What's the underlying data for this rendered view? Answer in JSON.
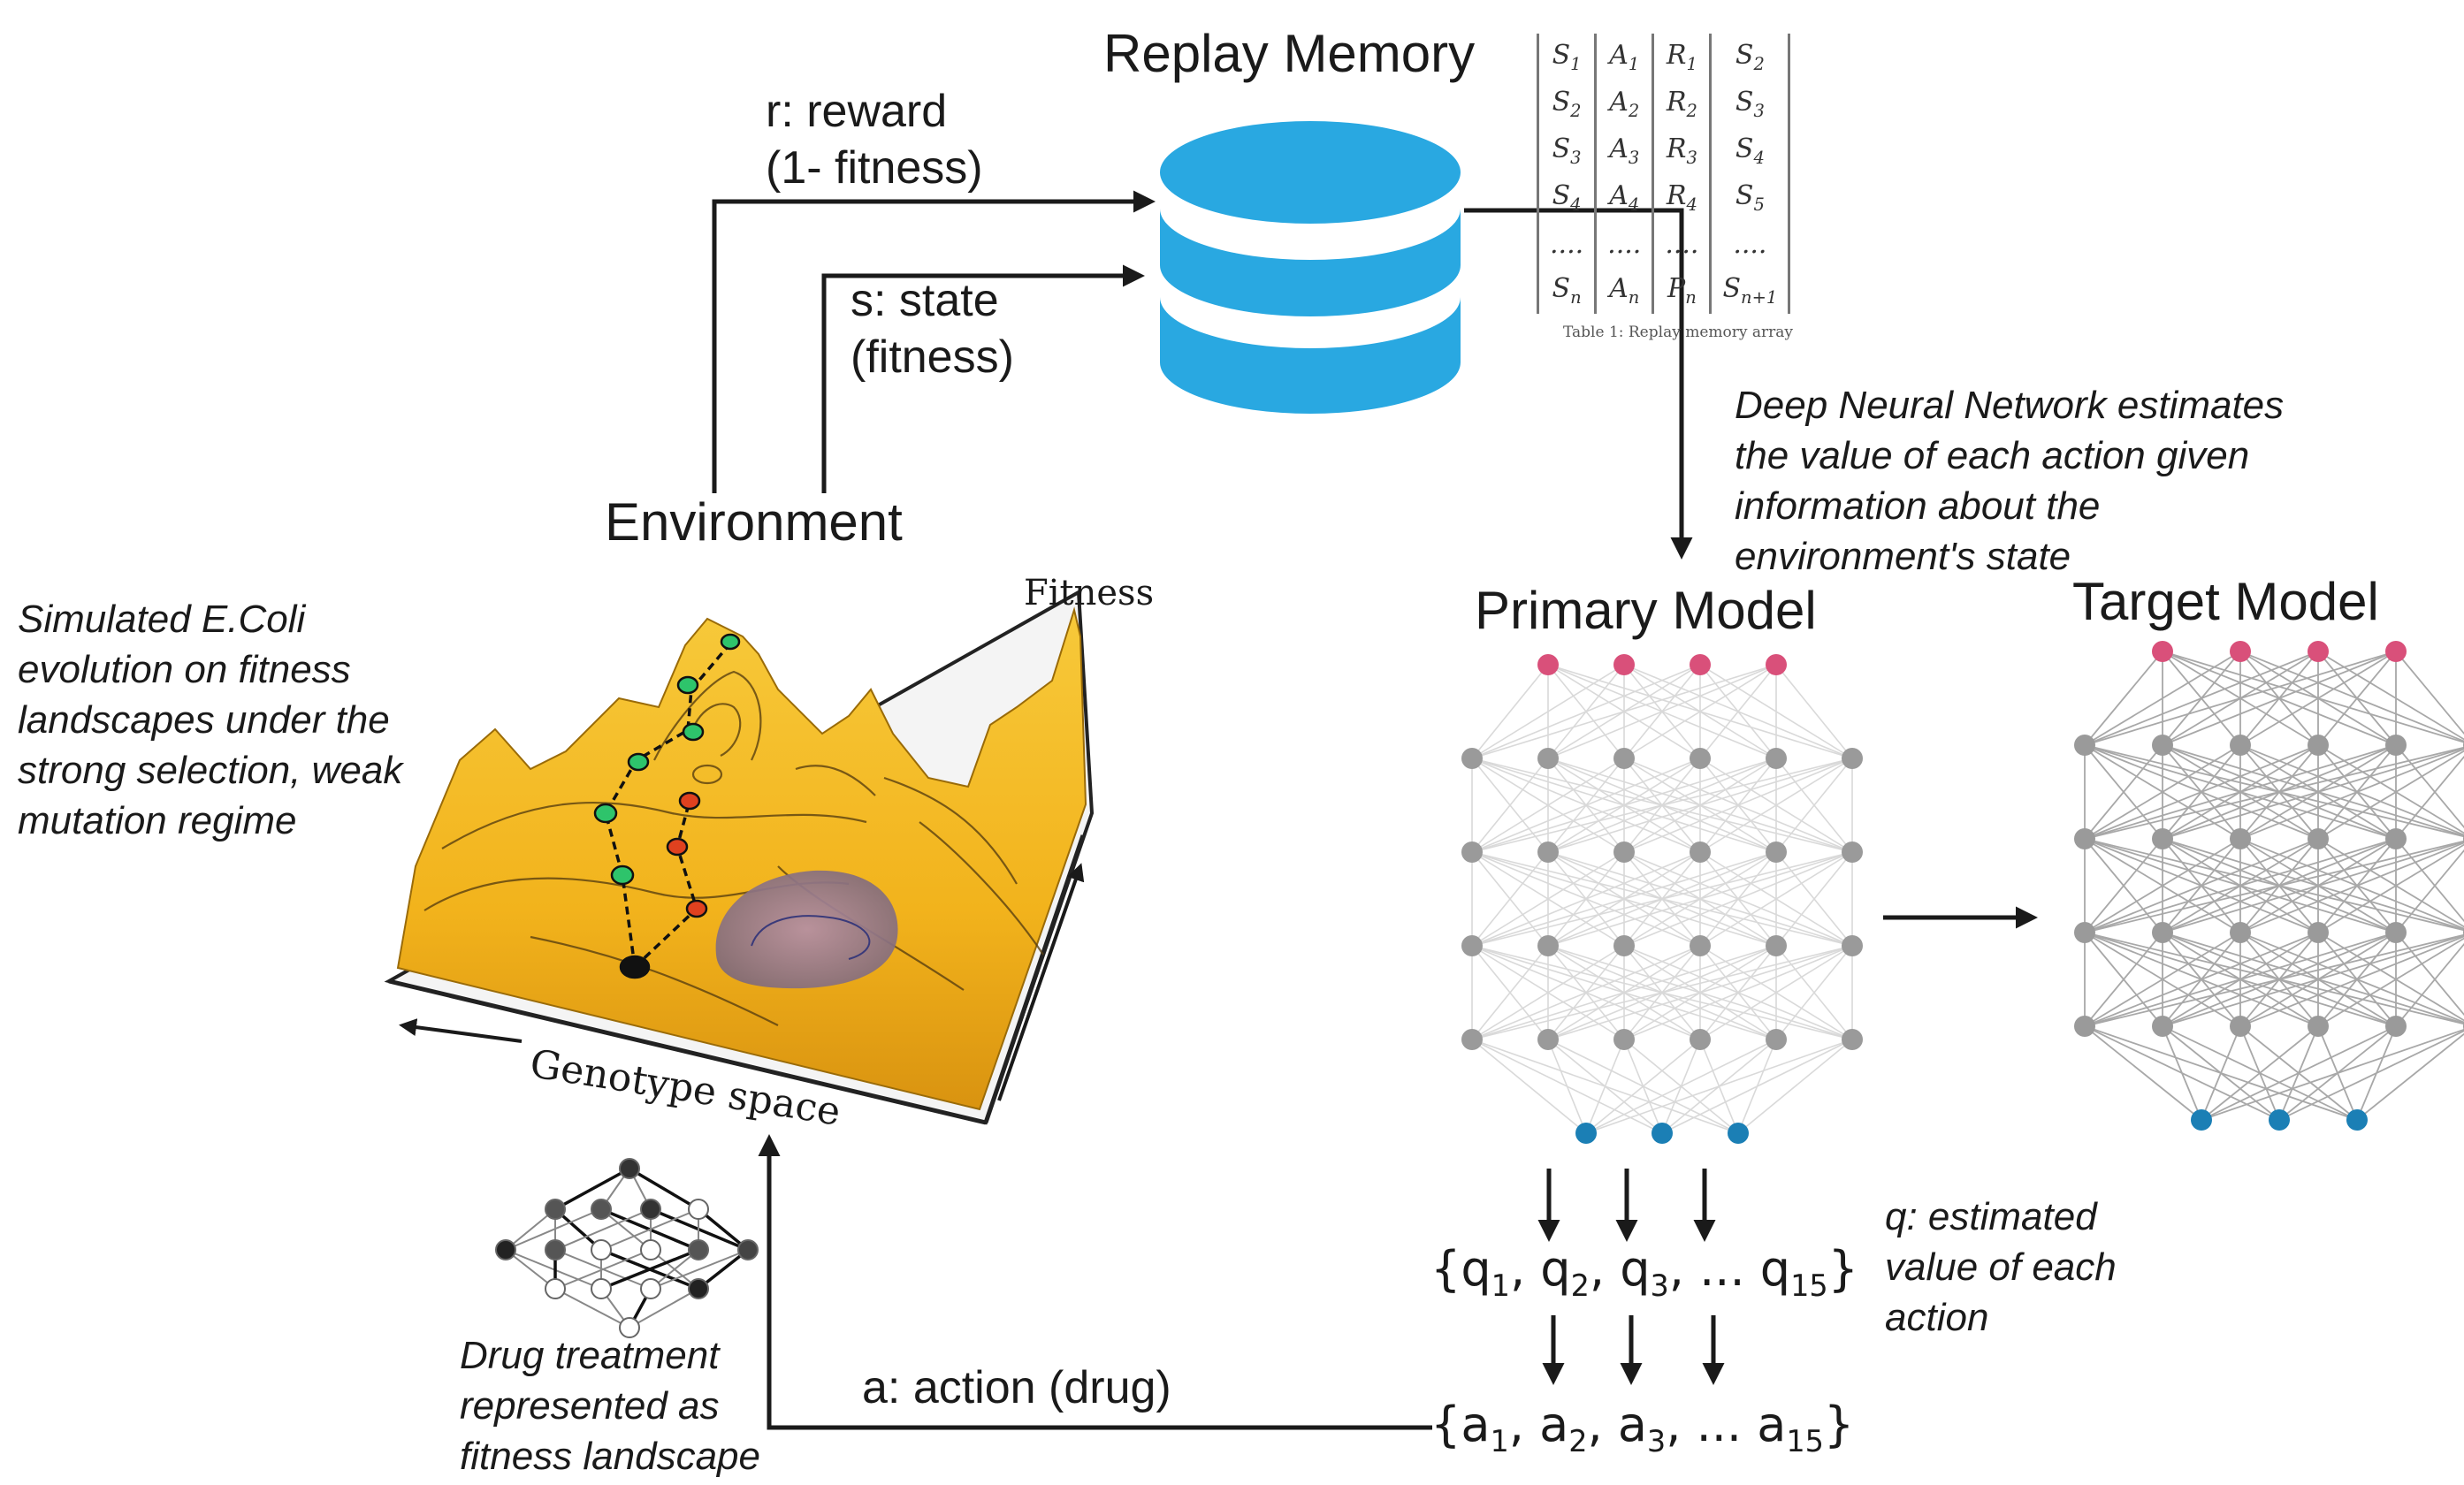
{
  "labels": {
    "replay_memory": "Replay Memory",
    "reward_line1": "r: reward",
    "reward_line2": "(1-  fitness)",
    "state_line1": "s: state",
    "state_line2": "(fitness)",
    "environment": "Environment",
    "primary_model": "Primary Model",
    "target_model": "Target Model",
    "dnn_note": "Deep Neural Network estimates the value of each action given information about the environment's state",
    "ecoli_note": "Simulated E.Coli evolution on fitness landscapes under the strong selection, weak mutation regime",
    "fitness_axis": "Fitness",
    "genotype_axis": "Genotype space",
    "drug_note": "Drug treatment represented as fitness landscape",
    "action": "a: action (drug)",
    "q_note": "q: estimated value of each action",
    "table_caption": "Table 1: Replay memory array"
  },
  "replay_table": {
    "rows": [
      [
        {
          "b": "S",
          "s": "1"
        },
        {
          "b": "A",
          "s": "1"
        },
        {
          "b": "R",
          "s": "1"
        },
        {
          "b": "S",
          "s": "2"
        }
      ],
      [
        {
          "b": "S",
          "s": "2"
        },
        {
          "b": "A",
          "s": "2"
        },
        {
          "b": "R",
          "s": "2"
        },
        {
          "b": "S",
          "s": "3"
        }
      ],
      [
        {
          "b": "S",
          "s": "3"
        },
        {
          "b": "A",
          "s": "3"
        },
        {
          "b": "R",
          "s": "3"
        },
        {
          "b": "S",
          "s": "4"
        }
      ],
      [
        {
          "b": "S",
          "s": "4"
        },
        {
          "b": "A",
          "s": "4"
        },
        {
          "b": "R",
          "s": "4"
        },
        {
          "b": "S",
          "s": "5"
        }
      ],
      [
        {
          "b": "....",
          "s": ""
        },
        {
          "b": "....",
          "s": ""
        },
        {
          "b": "....",
          "s": ""
        },
        {
          "b": "....",
          "s": ""
        }
      ],
      [
        {
          "b": "S",
          "s": "n"
        },
        {
          "b": "A",
          "s": "n"
        },
        {
          "b": "P",
          "s": "n"
        },
        {
          "b": "S",
          "s": "n+1"
        }
      ]
    ]
  },
  "q_set": {
    "open": "{",
    "items": [
      {
        "b": "q",
        "s": "1"
      },
      {
        "b": "q",
        "s": "2"
      },
      {
        "b": "q",
        "s": "3"
      }
    ],
    "ellipsis": "...",
    "last": {
      "b": "q",
      "s": "15"
    },
    "close": "}"
  },
  "a_set": {
    "open": "{",
    "items": [
      {
        "b": "a",
        "s": "1"
      },
      {
        "b": "a",
        "s": "2"
      },
      {
        "b": "a",
        "s": "3"
      }
    ],
    "ellipsis": "...",
    "last": {
      "b": "a",
      "s": "15"
    },
    "close": "}"
  },
  "networks": {
    "primary": {
      "layers": [
        4,
        6,
        6,
        6,
        6,
        3
      ]
    },
    "target": {
      "layers": [
        4,
        6,
        6,
        6,
        6,
        3
      ]
    }
  },
  "colors": {
    "database": "#29a8e1",
    "input_node": "#d9507a",
    "hidden_node": "#9a9a9a",
    "output_node": "#1b7fb5",
    "landscape": "#f2b31c",
    "path_green": "#2ec46b",
    "path_red": "#e0411f",
    "arrow": "#1a1a1a"
  }
}
